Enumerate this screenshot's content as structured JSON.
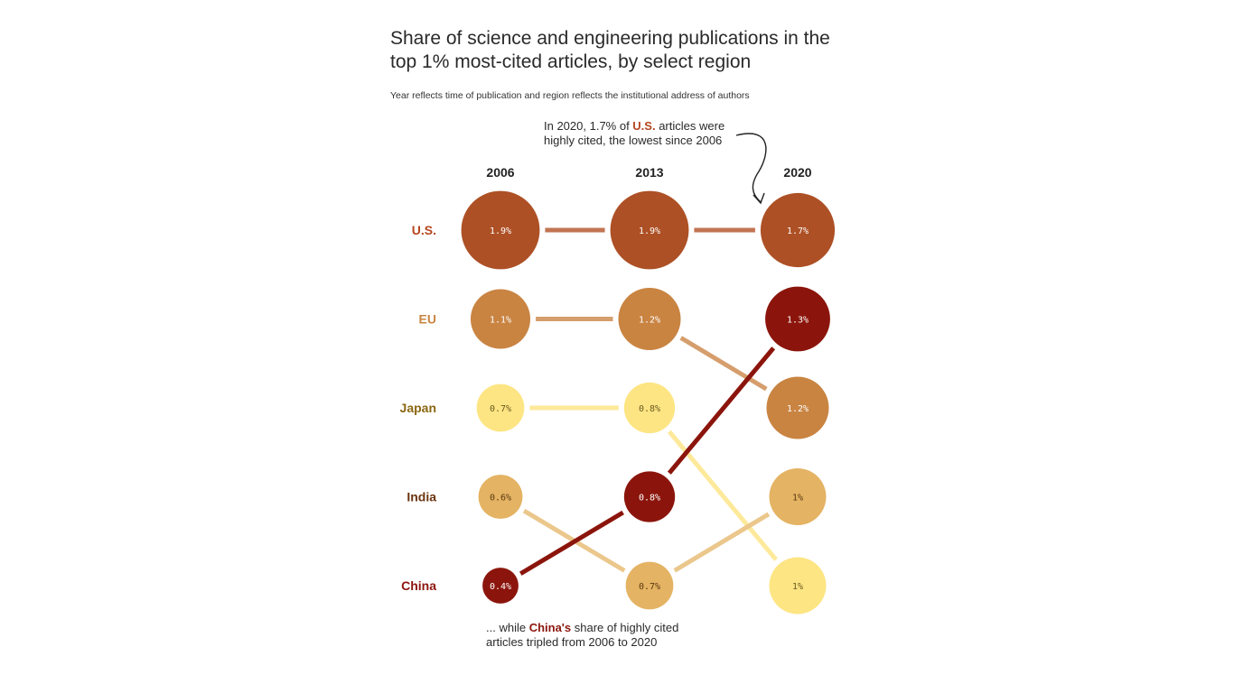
{
  "chart_data": {
    "type": "bump",
    "title": "Share of science and engineering publications in the top 1% most-cited articles, by select region",
    "subtitle": "Year reflects time of publication and region reflects the institutional address of authors",
    "years": [
      "2006",
      "2013",
      "2020"
    ],
    "row_labels": [
      "U.S.",
      "EU",
      "Japan",
      "India",
      "China"
    ],
    "series": [
      {
        "name": "U.S.",
        "color": "#AD5025",
        "label_color": "#B5461F",
        "line_color": "#C27553",
        "text_color": "#ffffff",
        "values": [
          1.9,
          1.9,
          1.7
        ],
        "labels": [
          "1.9%",
          "1.9%",
          "1.7%"
        ],
        "ranks": [
          1,
          1,
          1
        ]
      },
      {
        "name": "EU",
        "color": "#C98442",
        "label_color": "#C98442",
        "line_color": "#D59E6C",
        "text_color": "#ffffff",
        "values": [
          1.1,
          1.2,
          1.2
        ],
        "labels": [
          "1.1%",
          "1.2%",
          "1.2%"
        ],
        "ranks": [
          2,
          2,
          3
        ]
      },
      {
        "name": "Japan",
        "color": "#FDE583",
        "label_color": "#8A6710",
        "line_color": "#FDE99A",
        "text_color": "#6b5a20",
        "values": [
          0.7,
          0.8,
          1.0
        ],
        "labels": [
          "0.7%",
          "0.8%",
          "1%"
        ],
        "ranks": [
          3,
          3,
          5
        ]
      },
      {
        "name": "India",
        "color": "#E4B363",
        "label_color": "#6B3410",
        "line_color": "#EBC78C",
        "text_color": "#5a3a10",
        "values": [
          0.6,
          0.7,
          1.0
        ],
        "labels": [
          "0.6%",
          "0.7%",
          "1%"
        ],
        "ranks": [
          4,
          5,
          4
        ]
      },
      {
        "name": "China",
        "color": "#8B150C",
        "label_color": "#8B150C",
        "line_color": "#8B150C",
        "text_color": "#ffffff",
        "values": [
          0.4,
          0.8,
          1.3
        ],
        "labels": [
          "0.4%",
          "0.8%",
          "1.3%"
        ],
        "ranks": [
          5,
          4,
          2
        ]
      }
    ],
    "annotations": [
      {
        "before": "In 2020, 1.7% of ",
        "highlight": "U.S.",
        "after": " articles were highly cited, the lowest since 2006"
      },
      {
        "before": "... while ",
        "highlight": "China's",
        "after": " share of highly cited articles tripled from 2006 to 2020"
      }
    ]
  }
}
